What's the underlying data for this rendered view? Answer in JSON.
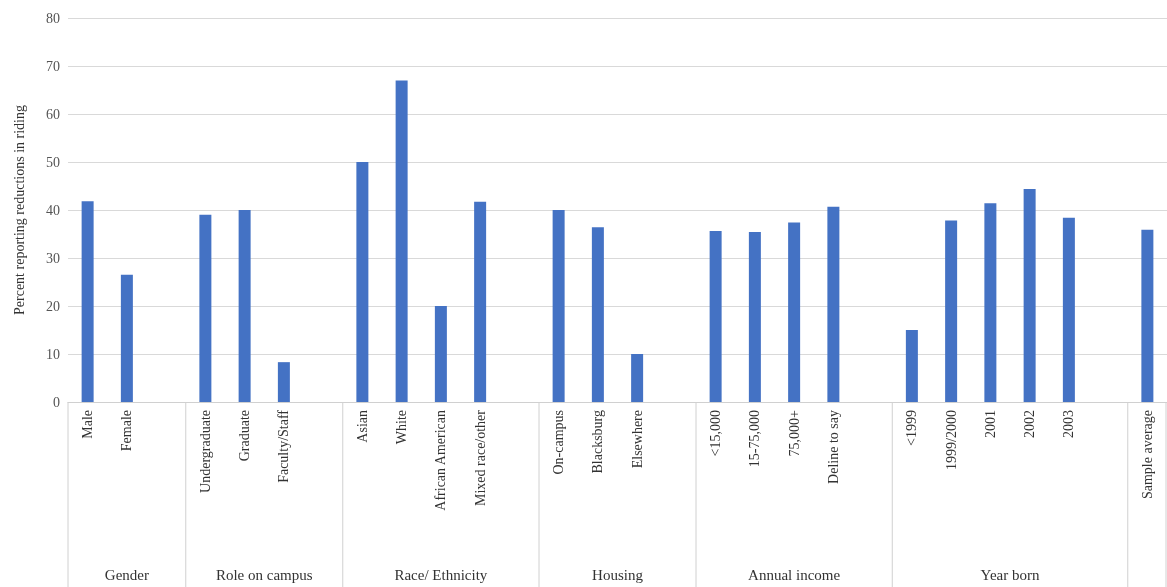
{
  "chart_data": {
    "type": "bar",
    "ylabel": "Percent reporting reductions in riding",
    "categories": [
      "Male",
      "Female",
      null,
      "Undergraduate",
      "Graduate",
      "Faculty/Staff",
      null,
      "Asian",
      "White",
      "African American",
      "Mixed race/other",
      null,
      "On-campus",
      "Blacksburg",
      "Elsewhere",
      null,
      "<15,000",
      "15-75,000",
      "75,000+",
      "Deline to say",
      null,
      "<1999",
      "1999/2000",
      "2001",
      "2002",
      "2003",
      null,
      "Sample average"
    ],
    "values": [
      41.8,
      26.5,
      null,
      39,
      40,
      8.3,
      null,
      50,
      67,
      20,
      41.7,
      null,
      40,
      36.4,
      10,
      null,
      35.6,
      35.4,
      37.4,
      40.7,
      null,
      15,
      37.8,
      41.4,
      44.4,
      38.4,
      null,
      35.9
    ],
    "color": "#4472c4",
    "ylim": [
      0,
      80
    ],
    "yticks": [
      0,
      10,
      20,
      30,
      40,
      50,
      60,
      70,
      80
    ],
    "grid": "y",
    "annotations": [
      "Gender",
      "Role on campus",
      "Race/ Ethnicity",
      "Housing",
      "Annual income",
      "Year born"
    ]
  }
}
